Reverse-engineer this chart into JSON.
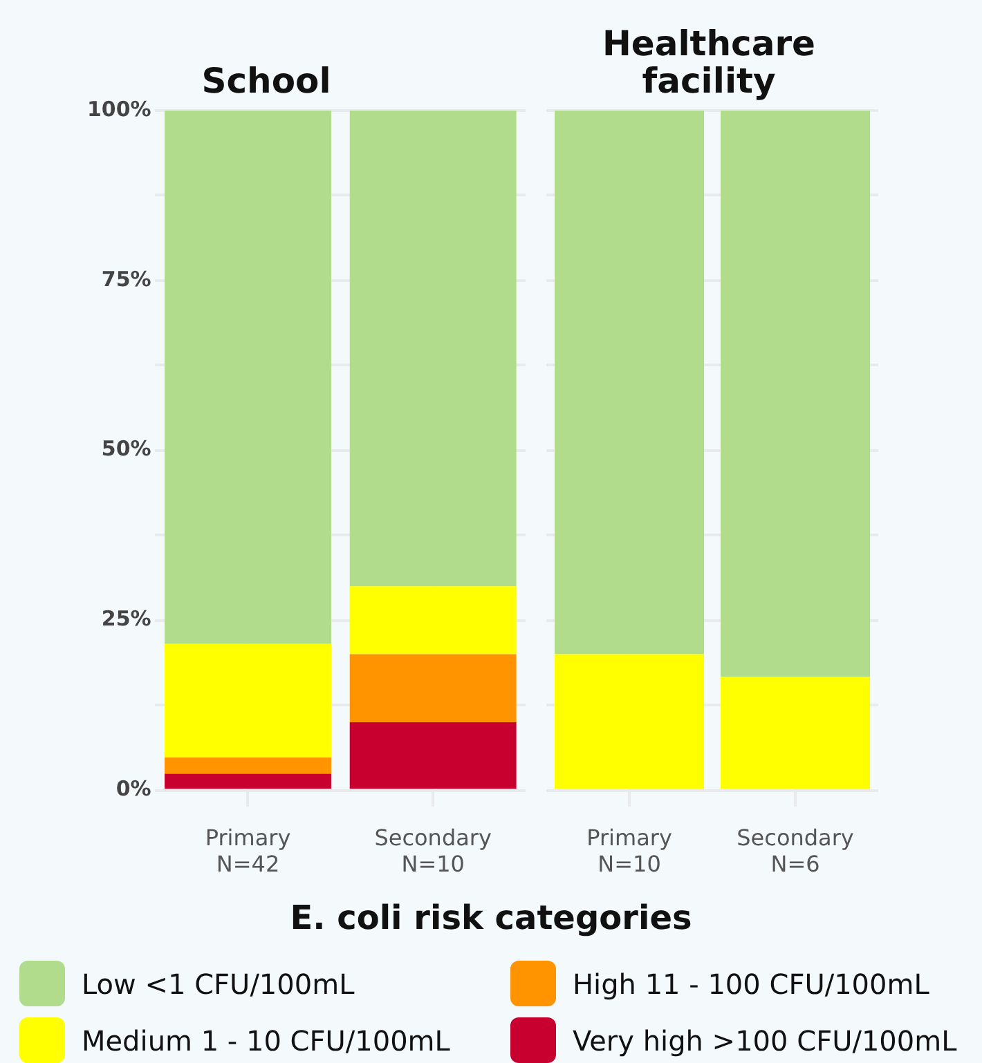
{
  "chart_data": [
    {
      "type": "bar",
      "title": "School",
      "categories": [
        "Primary\nN=42",
        "Secondary\nN=10"
      ],
      "stacked": true,
      "legend": "bottom",
      "legend_title": "E. coli risk categories",
      "grid": true,
      "ylim": [
        0,
        100
      ],
      "yticks": [
        {
          "value": 0,
          "label": "0%"
        },
        {
          "value": 12.5,
          "label": null
        },
        {
          "value": 25,
          "label": "25%"
        },
        {
          "value": 37.5,
          "label": null
        },
        {
          "value": 50,
          "label": "50%"
        },
        {
          "value": 62.5,
          "label": null
        },
        {
          "value": 75,
          "label": "75%"
        },
        {
          "value": 87.5,
          "label": null
        },
        {
          "value": 100,
          "label": "100%"
        }
      ],
      "series": [
        {
          "name": "Very high >100 CFU/100mL",
          "color": "#c80030",
          "values": [
            2.4,
            10
          ]
        },
        {
          "name": "High 11 - 100 CFU/100mL",
          "color": "#ff9400",
          "values": [
            2.4,
            10
          ]
        },
        {
          "name": "Medium 1 - 10 CFU/100mL",
          "color": "#ffff00",
          "values": [
            16.7,
            10
          ]
        },
        {
          "name": "Low <1 CFU/100mL",
          "color": "#b0dc8c",
          "values": [
            78.5,
            70
          ]
        }
      ]
    },
    {
      "type": "bar",
      "title": "Healthcare\nfacility",
      "categories": [
        "Primary\nN=10",
        "Secondary\nN=6"
      ],
      "stacked": true,
      "grid": true,
      "tick_labels": "x",
      "ylim": [
        0,
        100
      ],
      "yticks": [
        0,
        {
          "value": 12.5,
          "label": null
        },
        25,
        {
          "value": 37.5,
          "label": null
        },
        50,
        {
          "value": 62.5,
          "label": null
        },
        75,
        {
          "value": 87.5,
          "label": null
        },
        100
      ],
      "series": [
        {
          "color": "#c80030",
          "values": [
            0,
            0
          ]
        },
        {
          "color": "#ff9400",
          "values": [
            0,
            0
          ]
        },
        {
          "color": "#ffff00",
          "values": [
            20,
            16.7
          ]
        },
        {
          "color": "#b0dc8c",
          "values": [
            80,
            83.3
          ]
        }
      ]
    }
  ]
}
